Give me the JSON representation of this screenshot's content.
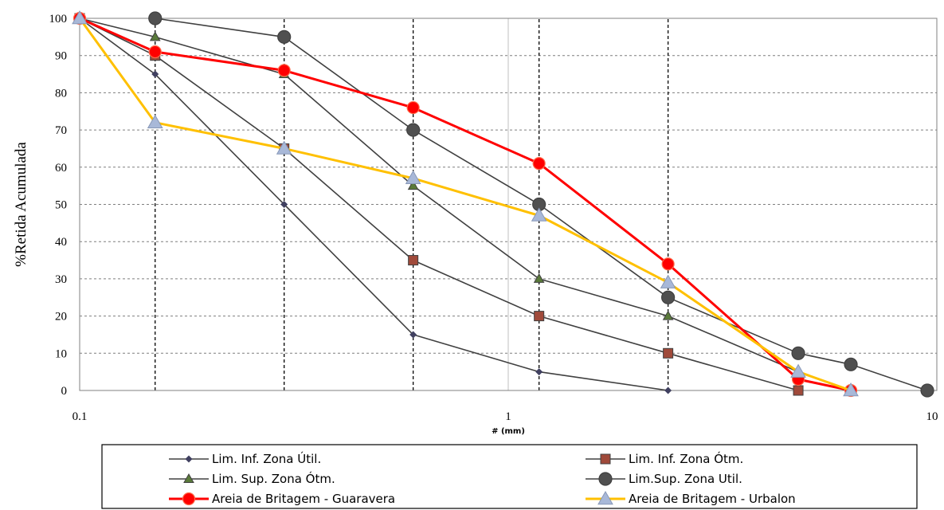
{
  "chart_data": {
    "type": "line",
    "xscale": "log",
    "xlim": [
      0.1,
      10
    ],
    "ylim": [
      0,
      100
    ],
    "xlabel": "# (mm)",
    "ylabel": "%Retida Acumulada",
    "xticks": [
      "0.1",
      "1",
      "10"
    ],
    "yticks": [
      "0",
      "10",
      "20",
      "30",
      "40",
      "50",
      "60",
      "70",
      "80",
      "90",
      "100"
    ],
    "grid": true,
    "legend_position": "bottom",
    "sieves": [
      0.15,
      0.3,
      0.6,
      1.18,
      2.36
    ],
    "series": [
      {
        "name": "Lim. Inf. Zona Útil.",
        "color": "#404040",
        "marker": "diamond",
        "x": [
          0.1,
          0.15,
          0.3,
          0.6,
          1.18,
          2.36
        ],
        "y": [
          100,
          85,
          50,
          15,
          5,
          0
        ]
      },
      {
        "name": "Lim. Inf. Zona Ótm.",
        "color": "#404040",
        "marker": "square",
        "x": [
          0.1,
          0.15,
          0.3,
          0.6,
          1.18,
          2.36,
          4.75
        ],
        "y": [
          100,
          90,
          65,
          35,
          20,
          10,
          0
        ]
      },
      {
        "name": "Lim. Sup. Zona Ótm.",
        "color": "#404040",
        "marker": "triangle",
        "x": [
          0.1,
          0.15,
          0.3,
          0.6,
          1.18,
          2.36,
          4.75
        ],
        "y": [
          100,
          95,
          85,
          55,
          30,
          20,
          5
        ]
      },
      {
        "name": "Lim.Sup. Zona Util.",
        "color": "#404040",
        "marker": "circle",
        "x": [
          0.15,
          0.3,
          0.6,
          1.18,
          2.36,
          4.75,
          6.3,
          9.5
        ],
        "y": [
          100,
          95,
          70,
          50,
          25,
          10,
          7,
          0
        ]
      },
      {
        "name": "Areia de Britagem - Guaravera",
        "color": "#ff0000",
        "marker": "circle",
        "x": [
          0.1,
          0.15,
          0.3,
          0.6,
          1.18,
          2.36,
          4.75,
          6.3
        ],
        "y": [
          100,
          91,
          86,
          76,
          61,
          34,
          3,
          0
        ]
      },
      {
        "name": "Areia de Britagem - Urbalon",
        "color": "#ffc000",
        "marker": "triangle",
        "x": [
          0.1,
          0.15,
          0.3,
          0.6,
          1.18,
          2.36,
          4.75,
          6.3
        ],
        "y": [
          100,
          72,
          65,
          57,
          47,
          29,
          5,
          0
        ]
      }
    ]
  }
}
